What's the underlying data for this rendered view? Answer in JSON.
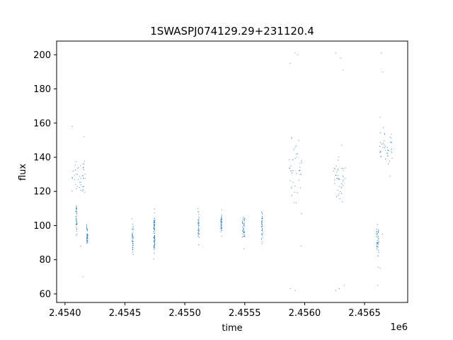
{
  "chart_data": {
    "type": "scatter",
    "title": "1SWASPJ074129.29+231120.4",
    "xlabel": "time",
    "ylabel": "flux",
    "x_offset_label": "1e6",
    "xlim": [
      2.45393,
      2.45686
    ],
    "ylim": [
      55,
      208
    ],
    "xticks": [
      2.454,
      2.4545,
      2.455,
      2.4555,
      2.456,
      2.4565
    ],
    "xtick_labels": [
      "2.4540",
      "2.4545",
      "2.4550",
      "2.4555",
      "2.4560",
      "2.4565"
    ],
    "yticks": [
      60,
      80,
      100,
      120,
      140,
      160,
      180,
      200
    ],
    "ytick_labels": [
      "60",
      "80",
      "100",
      "120",
      "140",
      "160",
      "180",
      "200"
    ],
    "grid": false,
    "marker_color": "#1f77b4",
    "clusters": [
      {
        "x": [
          2.45406,
          2.45417
        ],
        "y_center": 130,
        "y_spread": 6,
        "outliers": [
          [
            2.45406,
            158
          ],
          [
            2.45413,
            88
          ],
          [
            2.45415,
            70
          ],
          [
            2.45416,
            152
          ]
        ]
      },
      {
        "x": [
          2.45409,
          2.4541
        ],
        "y_center": 104,
        "y_spread": 4,
        "outliers": []
      },
      {
        "x": [
          2.45418,
          2.45419
        ],
        "y_center": 94,
        "y_spread": 3,
        "outliers": []
      },
      {
        "x": [
          2.45456,
          2.45457
        ],
        "y_center": 92,
        "y_spread": 4,
        "outliers": [
          [
            2.45456,
            104
          ]
        ]
      },
      {
        "x": [
          2.45474,
          2.45475
        ],
        "y_center": 101,
        "y_spread": 3,
        "outliers": []
      },
      {
        "x": [
          2.45474,
          2.45475
        ],
        "y_center": 91,
        "y_spread": 3,
        "outliers": []
      },
      {
        "x": [
          2.45511,
          2.45512
        ],
        "y_center": 99,
        "y_spread": 4,
        "outliers": []
      },
      {
        "x": [
          2.4553,
          2.45531
        ],
        "y_center": 101,
        "y_spread": 3,
        "outliers": []
      },
      {
        "x": [
          2.45548,
          2.4555
        ],
        "y_center": 98,
        "y_spread": 4,
        "outliers": []
      },
      {
        "x": [
          2.45564,
          2.45565
        ],
        "y_center": 99,
        "y_spread": 4,
        "outliers": []
      },
      {
        "x": [
          2.45587,
          2.45598
        ],
        "y_center": 130,
        "y_spread": 9,
        "outliers": [
          [
            2.45588,
            195
          ],
          [
            2.45592,
            201
          ],
          [
            2.45594,
            200
          ],
          [
            2.45588,
            63
          ],
          [
            2.45592,
            62
          ],
          [
            2.45597,
            88
          ]
        ]
      },
      {
        "x": [
          2.45624,
          2.45634
        ],
        "y_center": 128,
        "y_spread": 10,
        "outliers": [
          [
            2.45626,
            201
          ],
          [
            2.4563,
            198
          ],
          [
            2.45632,
            191
          ],
          [
            2.45626,
            62
          ],
          [
            2.45629,
            63
          ],
          [
            2.45633,
            65
          ]
        ]
      },
      {
        "x": [
          2.4566,
          2.45662
        ],
        "y_center": 90,
        "y_spread": 5,
        "outliers": [
          [
            2.45661,
            65
          ]
        ]
      },
      {
        "x": [
          2.45662,
          2.45673
        ],
        "y_center": 145,
        "y_spread": 6,
        "outliers": [
          [
            2.45664,
            201
          ],
          [
            2.45665,
            190
          ],
          [
            2.45663,
            75
          ],
          [
            2.45665,
            95
          ]
        ]
      }
    ]
  }
}
